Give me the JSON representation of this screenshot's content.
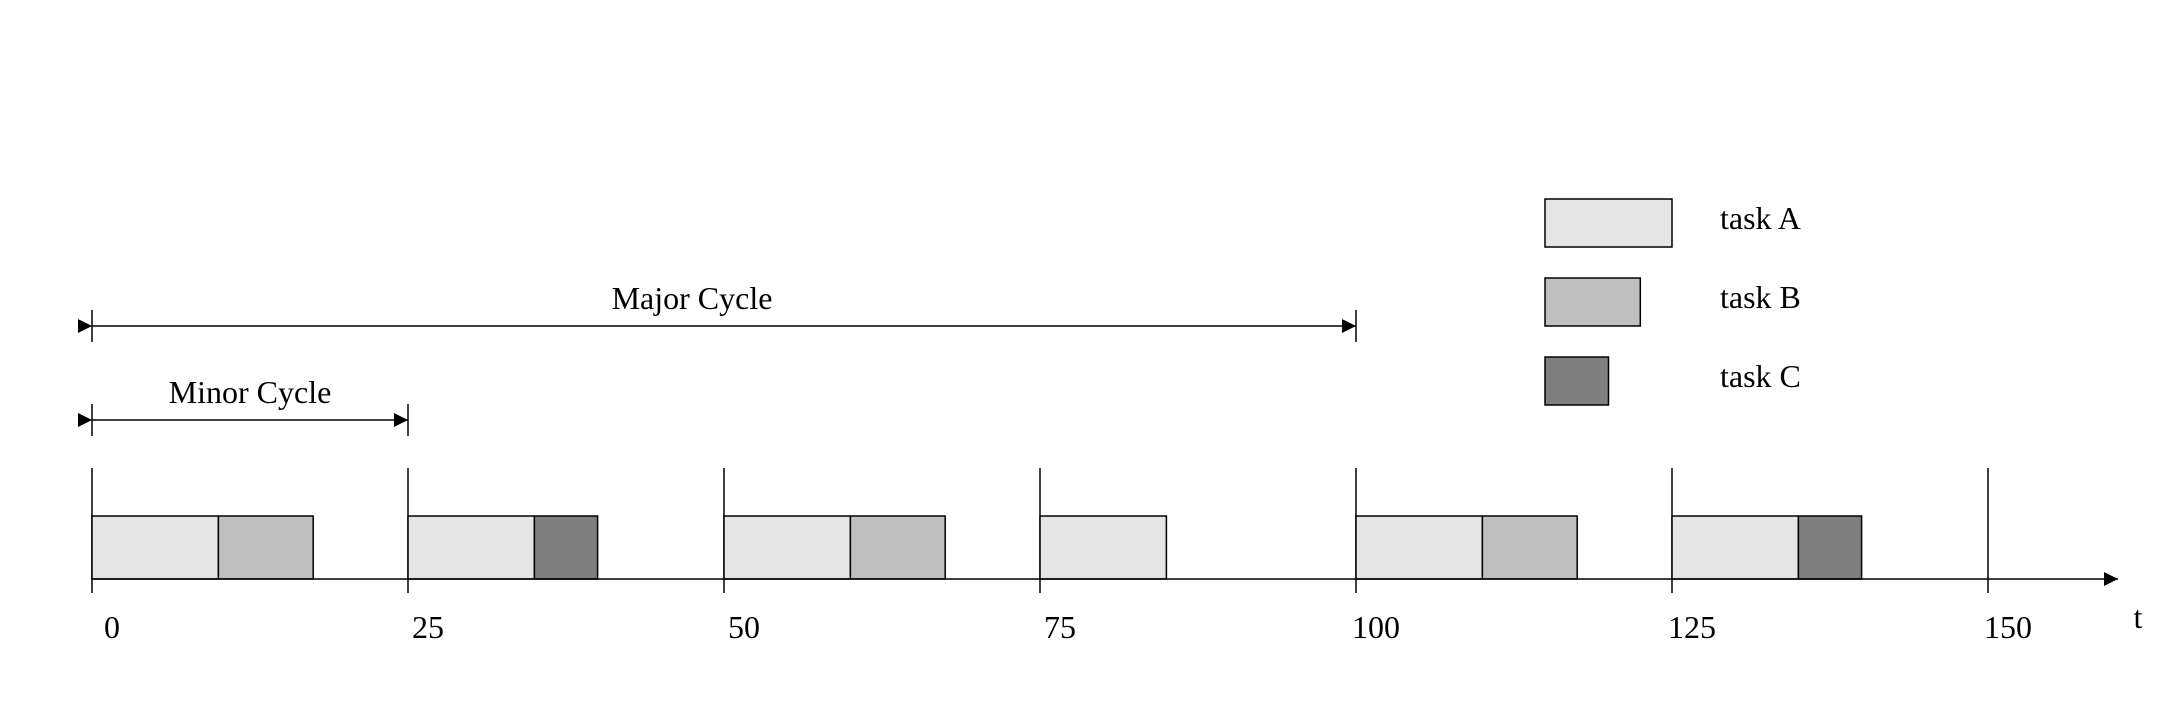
{
  "colors": {
    "task_a": "#e5e5e5",
    "task_b": "#bfbfbf",
    "task_c": "#7f7f7f",
    "stroke": "#000000"
  },
  "legend": [
    {
      "id": "task-a",
      "label": "task A",
      "color_key": "task_a",
      "relative_width": 1.0
    },
    {
      "id": "task-b",
      "label": "task B",
      "color_key": "task_b",
      "relative_width": 0.75
    },
    {
      "id": "task-c",
      "label": "task C",
      "color_key": "task_c",
      "relative_width": 0.5
    }
  ],
  "axis": {
    "label": "t",
    "ticks": [
      "0",
      "25",
      "50",
      "75",
      "100",
      "125",
      "150"
    ],
    "tick_values": [
      0,
      25,
      50,
      75,
      100,
      125,
      150
    ]
  },
  "annotations": {
    "major_cycle": {
      "label": "Major Cycle",
      "start": 0,
      "end": 100
    },
    "minor_cycle": {
      "label": "Minor Cycle",
      "start": 0,
      "end": 25
    }
  },
  "schedule": [
    {
      "task": "task_a",
      "start": 0,
      "end": 10
    },
    {
      "task": "task_b",
      "start": 10,
      "end": 17.5
    },
    {
      "task": "task_a",
      "start": 25,
      "end": 35
    },
    {
      "task": "task_c",
      "start": 35,
      "end": 40
    },
    {
      "task": "task_a",
      "start": 50,
      "end": 60
    },
    {
      "task": "task_b",
      "start": 60,
      "end": 67.5
    },
    {
      "task": "task_a",
      "start": 75,
      "end": 85
    },
    {
      "task": "task_a",
      "start": 100,
      "end": 110
    },
    {
      "task": "task_b",
      "start": 110,
      "end": 117.5
    },
    {
      "task": "task_a",
      "start": 125,
      "end": 135
    },
    {
      "task": "task_c",
      "start": 135,
      "end": 140
    }
  ]
}
